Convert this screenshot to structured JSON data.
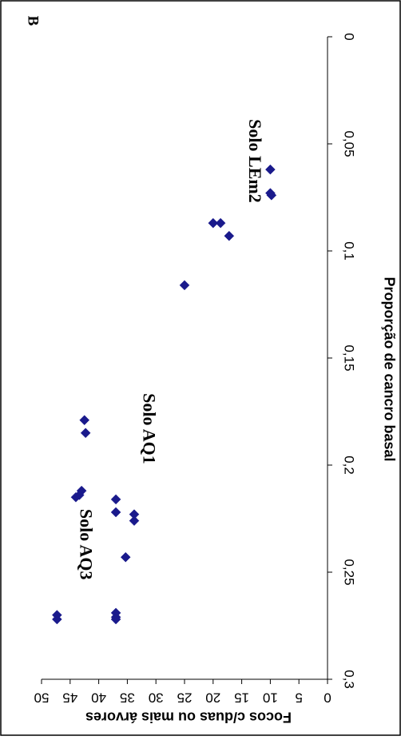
{
  "panel_label": "B",
  "chart_data": {
    "type": "scatter",
    "xlabel": "Proporção de cancro basal",
    "ylabel": "Focos c/duas ou mais árvores",
    "xlim": [
      0,
      0.3
    ],
    "ylim": [
      0,
      50
    ],
    "x_ticks": [
      "0",
      "0,05",
      "0,1",
      "0,15",
      "0,2",
      "0,25",
      "0,3"
    ],
    "y_ticks": [
      "0",
      "5",
      "10",
      "15",
      "20",
      "25",
      "30",
      "35",
      "40",
      "45",
      "50"
    ],
    "grid": false,
    "marker": "diamond",
    "marker_color": "#1a1a8c",
    "series": [
      {
        "points": [
          {
            "x": 0.062,
            "y": 10
          },
          {
            "x": 0.073,
            "y": 10
          },
          {
            "x": 0.074,
            "y": 9.8
          },
          {
            "x": 0.087,
            "y": 20
          },
          {
            "x": 0.087,
            "y": 18.7
          },
          {
            "x": 0.093,
            "y": 17.2
          },
          {
            "x": 0.116,
            "y": 25
          },
          {
            "x": 0.179,
            "y": 42.5
          },
          {
            "x": 0.185,
            "y": 42.3
          },
          {
            "x": 0.212,
            "y": 43
          },
          {
            "x": 0.214,
            "y": 43.4
          },
          {
            "x": 0.215,
            "y": 44
          },
          {
            "x": 0.216,
            "y": 37
          },
          {
            "x": 0.222,
            "y": 37
          },
          {
            "x": 0.223,
            "y": 33.8
          },
          {
            "x": 0.226,
            "y": 33.8
          },
          {
            "x": 0.243,
            "y": 35.3
          },
          {
            "x": 0.269,
            "y": 37
          },
          {
            "x": 0.271,
            "y": 37
          },
          {
            "x": 0.272,
            "y": 37
          },
          {
            "x": 0.27,
            "y": 47.3
          },
          {
            "x": 0.272,
            "y": 47.3
          }
        ]
      }
    ],
    "annotations": [
      {
        "text": "Solo LEm2",
        "x": 0.058,
        "y": 13
      },
      {
        "text": "Solo AQ1",
        "x": 0.183,
        "y": 31.5
      },
      {
        "text": "Solo AQ3",
        "x": 0.237,
        "y": 42.5
      }
    ]
  }
}
